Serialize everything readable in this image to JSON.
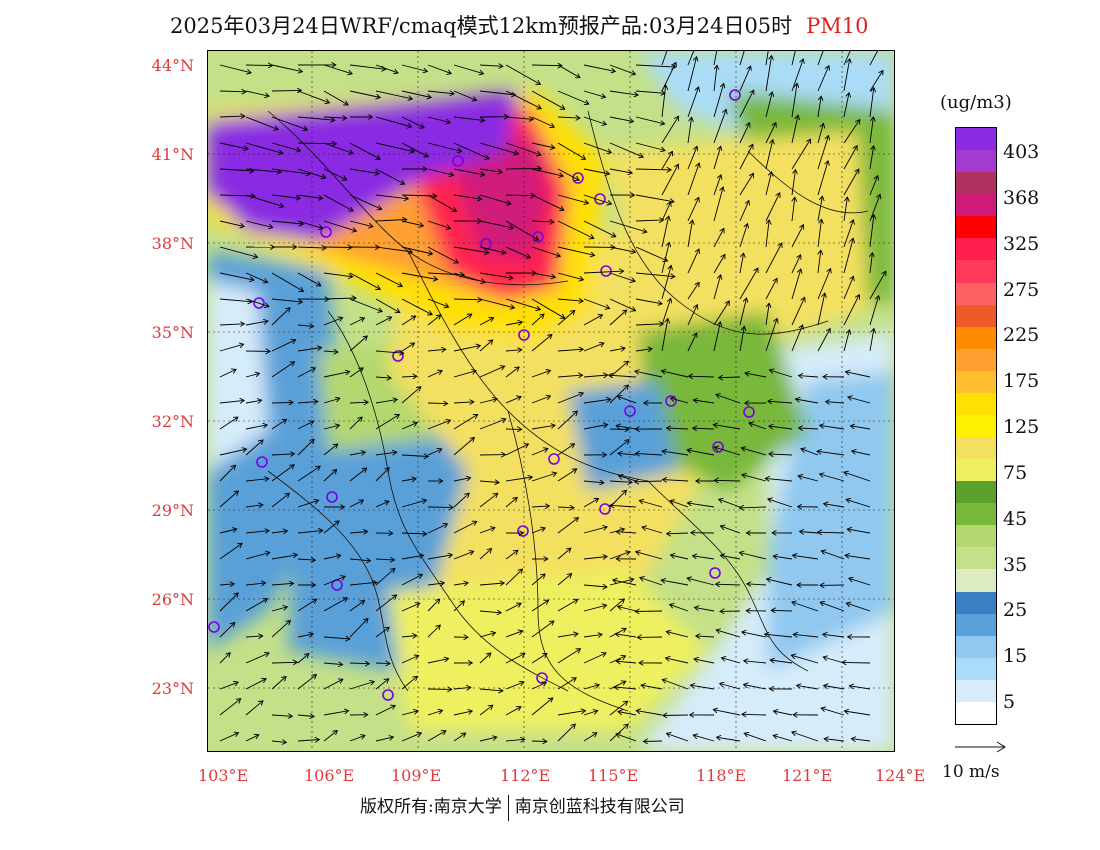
{
  "title": {
    "text": "2025年03月24日WRF/cmaq模式12km预报产品:03月24日05时",
    "pollutant": "PM10",
    "pollutant_color": "#e02020"
  },
  "axes": {
    "lat_labels": [
      "44°N",
      "41°N",
      "38°N",
      "35°N",
      "32°N",
      "29°N",
      "26°N",
      "23°N"
    ],
    "lon_labels": [
      "103°E",
      "106°E",
      "109°E",
      "112°E",
      "115°E",
      "118°E",
      "121°E",
      "124°E"
    ],
    "label_color": "#e03a3a"
  },
  "legend": {
    "unit": "(ug/m3)",
    "colors": [
      "#8a2be2",
      "#a33bd0",
      "#b03060",
      "#d01a7a",
      "#ff0000",
      "#ff2050",
      "#ff3a5a",
      "#ff6060",
      "#f05a28",
      "#ff8c00",
      "#ffa030",
      "#ffc030",
      "#ffe000",
      "#fff000",
      "#f4e060",
      "#eef060",
      "#5aa02a",
      "#78b83a",
      "#b4d870",
      "#c4e088",
      "#dcebc0",
      "#3a7fc0",
      "#5aa0d8",
      "#90c8f0",
      "#aadcf8",
      "#d6ecfa",
      "#ffffff"
    ],
    "labels": [
      "403",
      "368",
      "325",
      "275",
      "225",
      "175",
      "125",
      "75",
      "45",
      "35",
      "25",
      "15",
      "5"
    ]
  },
  "wind": {
    "reference_label": "10 m/s"
  },
  "footer": {
    "copyright_a": "版权所有:南京大学",
    "copyright_b": "南京创蓝科技有限公司"
  }
}
